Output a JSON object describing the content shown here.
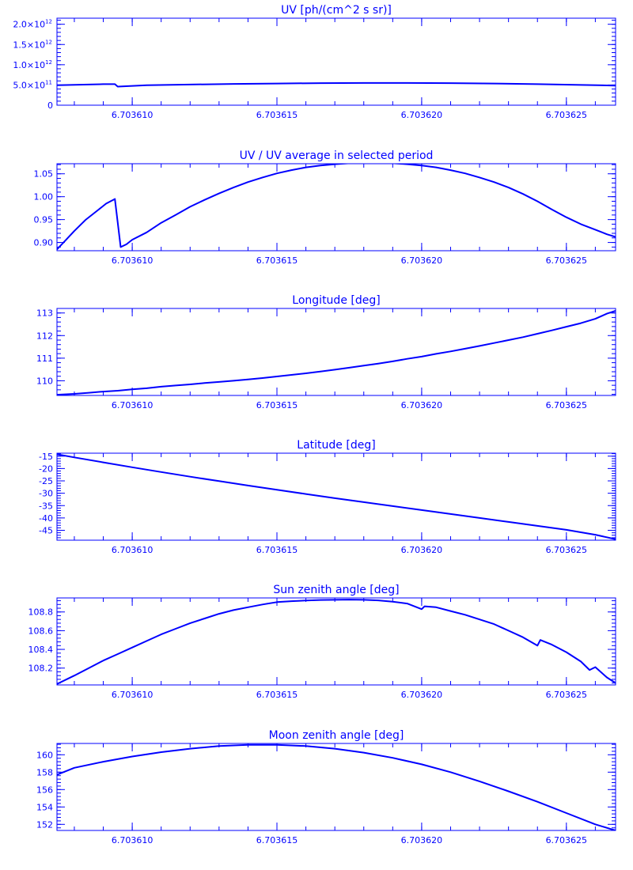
{
  "chart_data": [
    {
      "type": "line",
      "title": "UV [ph/(cm^2 s sr)]",
      "xlabel": "",
      "ylabel": "",
      "xlim": [
        6.7036074,
        6.7036267
      ],
      "ylim": [
        0,
        2150000000000.0
      ],
      "x_ticks": [
        "6.703610",
        "6.703615",
        "6.703620",
        "6.703625"
      ],
      "y_ticks": [
        {
          "value": 2000000000000.0,
          "label": "2.0×10",
          "exp": "12"
        },
        {
          "value": 1500000000000.0,
          "label": "1.5×10",
          "exp": "12"
        },
        {
          "value": 1000000000000.0,
          "label": "1.0×10",
          "exp": "12"
        },
        {
          "value": 500000000000.0,
          "label": "5.0×10",
          "exp": "11"
        },
        {
          "value": 0,
          "label": "0",
          "exp": ""
        }
      ],
      "series": [
        {
          "x": [
            6.7036074,
            6.703609,
            6.7036094,
            6.7036095,
            6.7036105,
            6.703612,
            6.7036135,
            6.703615,
            6.7036165,
            6.703618,
            6.7036195,
            6.703621,
            6.7036225,
            6.703624,
            6.7036255,
            6.7036267
          ],
          "y": [
            495000000000.0,
            520000000000.0,
            520000000000.0,
            460000000000.0,
            495000000000.0,
            510000000000.0,
            525000000000.0,
            535000000000.0,
            545000000000.0,
            550000000000.0,
            550000000000.0,
            545000000000.0,
            535000000000.0,
            520000000000.0,
            500000000000.0,
            485000000000.0
          ]
        }
      ]
    },
    {
      "type": "line",
      "title": "UV / UV average in selected period",
      "xlabel": "",
      "ylabel": "",
      "xlim": [
        6.7036074,
        6.7036267
      ],
      "ylim": [
        0.882,
        1.072
      ],
      "x_ticks": [
        "6.703610",
        "6.703615",
        "6.703620",
        "6.703625"
      ],
      "y_ticks": [
        {
          "value": 1.05,
          "label": "1.05"
        },
        {
          "value": 1.0,
          "label": "1.00"
        },
        {
          "value": 0.95,
          "label": "0.95"
        },
        {
          "value": 0.9,
          "label": "0.90"
        }
      ],
      "series": [
        {
          "x": [
            6.7036074,
            6.7036077,
            6.703608,
            6.7036084,
            6.7036088,
            6.7036091,
            6.7036094,
            6.7036096,
            6.7036098,
            6.70361,
            6.7036105,
            6.703611,
            6.7036115,
            6.703612,
            6.7036125,
            6.703613,
            6.7036135,
            6.703614,
            6.7036145,
            6.703615,
            6.7036155,
            6.703616,
            6.7036165,
            6.703617,
            6.7036175,
            6.703618,
            6.7036185,
            6.703619,
            6.7036195,
            6.70362,
            6.7036205,
            6.703621,
            6.7036215,
            6.703622,
            6.7036225,
            6.703623,
            6.7036235,
            6.703624,
            6.7036245,
            6.703625,
            6.7036255,
            6.703626,
            6.7036264,
            6.7036267
          ],
          "y": [
            0.885,
            0.905,
            0.925,
            0.95,
            0.97,
            0.985,
            0.995,
            0.89,
            0.896,
            0.906,
            0.922,
            0.943,
            0.96,
            0.978,
            0.993,
            1.007,
            1.02,
            1.032,
            1.042,
            1.051,
            1.058,
            1.064,
            1.068,
            1.071,
            1.073,
            1.074,
            1.074,
            1.073,
            1.071,
            1.068,
            1.064,
            1.058,
            1.051,
            1.042,
            1.032,
            1.02,
            1.006,
            0.99,
            0.972,
            0.955,
            0.94,
            0.928,
            0.918,
            0.912
          ]
        }
      ]
    },
    {
      "type": "line",
      "title": "Longitude [deg]",
      "xlabel": "",
      "ylabel": "",
      "xlim": [
        6.7036074,
        6.7036267
      ],
      "ylim": [
        109.35,
        113.2
      ],
      "x_ticks": [
        "6.703610",
        "6.703615",
        "6.703620",
        "6.703625"
      ],
      "y_ticks": [
        {
          "value": 113,
          "label": "113"
        },
        {
          "value": 112,
          "label": "112"
        },
        {
          "value": 111,
          "label": "111"
        },
        {
          "value": 110,
          "label": "110"
        }
      ],
      "series": [
        {
          "x": [
            6.7036074,
            6.703608,
            6.7036085,
            6.703609,
            6.7036095,
            6.70361,
            6.7036105,
            6.703611,
            6.7036115,
            6.703612,
            6.7036125,
            6.703613,
            6.7036135,
            6.703614,
            6.7036145,
            6.703615,
            6.7036155,
            6.703616,
            6.7036165,
            6.703617,
            6.7036175,
            6.703618,
            6.7036185,
            6.703619,
            6.7036195,
            6.70362,
            6.7036205,
            6.703621,
            6.7036215,
            6.703622,
            6.7036225,
            6.703623,
            6.7036235,
            6.703624,
            6.7036245,
            6.703625,
            6.7036255,
            6.703626,
            6.7036264,
            6.7036267
          ],
          "y": [
            109.38,
            109.42,
            109.47,
            109.52,
            109.56,
            109.62,
            109.67,
            109.74,
            109.79,
            109.84,
            109.9,
            109.95,
            110.0,
            110.06,
            110.12,
            110.19,
            110.26,
            110.33,
            110.41,
            110.49,
            110.58,
            110.67,
            110.76,
            110.86,
            110.97,
            111.07,
            111.19,
            111.3,
            111.42,
            111.54,
            111.67,
            111.8,
            111.93,
            112.08,
            112.23,
            112.39,
            112.55,
            112.74,
            112.97,
            113.1
          ]
        }
      ]
    },
    {
      "type": "line",
      "title": "Latitude [deg]",
      "xlabel": "",
      "ylabel": "",
      "xlim": [
        6.7036074,
        6.7036267
      ],
      "ylim": [
        -49.0,
        -13.8
      ],
      "x_ticks": [
        "6.703610",
        "6.703615",
        "6.703620",
        "6.703625"
      ],
      "y_ticks": [
        {
          "value": -15,
          "label": "-15"
        },
        {
          "value": -20,
          "label": "-20"
        },
        {
          "value": -25,
          "label": "-25"
        },
        {
          "value": -30,
          "label": "-30"
        },
        {
          "value": -35,
          "label": "-35"
        },
        {
          "value": -40,
          "label": "-40"
        },
        {
          "value": -45,
          "label": "-45"
        }
      ],
      "series": [
        {
          "x": [
            6.7036074,
            6.703608,
            6.703609,
            6.70361,
            6.703611,
            6.703612,
            6.703613,
            6.703614,
            6.703615,
            6.703616,
            6.703617,
            6.703618,
            6.703619,
            6.70362,
            6.703621,
            6.703622,
            6.703623,
            6.703624,
            6.703625,
            6.703626,
            6.7036267
          ],
          "y": [
            -14.2,
            -15.5,
            -17.5,
            -19.5,
            -21.4,
            -23.3,
            -25.1,
            -26.9,
            -28.6,
            -30.3,
            -32.0,
            -33.6,
            -35.2,
            -36.8,
            -38.4,
            -40.0,
            -41.6,
            -43.2,
            -44.8,
            -46.8,
            -48.6
          ]
        }
      ]
    },
    {
      "type": "line",
      "title": "Sun zenith angle [deg]",
      "xlabel": "",
      "ylabel": "",
      "xlim": [
        6.7036074,
        6.7036267
      ],
      "ylim": [
        108.02,
        108.95
      ],
      "x_ticks": [
        "6.703610",
        "6.703615",
        "6.703620",
        "6.703625"
      ],
      "y_ticks": [
        {
          "value": 108.8,
          "label": "108.8"
        },
        {
          "value": 108.6,
          "label": "108.6"
        },
        {
          "value": 108.4,
          "label": "108.4"
        },
        {
          "value": 108.2,
          "label": "108.2"
        }
      ],
      "series": [
        {
          "x": [
            6.7036074,
            6.703608,
            6.7036085,
            6.703609,
            6.7036095,
            6.70361,
            6.7036105,
            6.703611,
            6.7036115,
            6.703612,
            6.7036125,
            6.703613,
            6.7036135,
            6.703614,
            6.7036145,
            6.703615,
            6.7036155,
            6.703616,
            6.7036165,
            6.703617,
            6.7036175,
            6.703618,
            6.7036185,
            6.703619,
            6.7036195,
            6.70362,
            6.7036201,
            6.7036205,
            6.703621,
            6.7036215,
            6.703622,
            6.7036225,
            6.703623,
            6.7036235,
            6.703624,
            6.7036241,
            6.7036245,
            6.703625,
            6.7036255,
            6.7036258,
            6.703626,
            6.7036264,
            6.7036267
          ],
          "y": [
            108.03,
            108.12,
            108.2,
            108.28,
            108.35,
            108.42,
            108.49,
            108.56,
            108.62,
            108.68,
            108.73,
            108.78,
            108.82,
            108.85,
            108.88,
            108.905,
            108.915,
            108.922,
            108.928,
            108.93,
            108.932,
            108.93,
            108.924,
            108.91,
            108.89,
            108.83,
            108.86,
            108.85,
            108.81,
            108.77,
            108.72,
            108.67,
            108.6,
            108.53,
            108.44,
            108.5,
            108.45,
            108.37,
            108.27,
            108.18,
            108.21,
            108.1,
            108.04
          ]
        }
      ]
    },
    {
      "type": "line",
      "title": "Moon zenith angle [deg]",
      "xlabel": "",
      "ylabel": "",
      "xlim": [
        6.7036074,
        6.7036267
      ],
      "ylim": [
        151.3,
        161.3
      ],
      "x_ticks": [
        "6.703610",
        "6.703615",
        "6.703620",
        "6.703625"
      ],
      "y_ticks": [
        {
          "value": 160,
          "label": "160"
        },
        {
          "value": 158,
          "label": "158"
        },
        {
          "value": 156,
          "label": "156"
        },
        {
          "value": 154,
          "label": "154"
        },
        {
          "value": 152,
          "label": "152"
        }
      ],
      "series": [
        {
          "x": [
            6.7036074,
            6.703608,
            6.703609,
            6.70361,
            6.703611,
            6.703612,
            6.703613,
            6.703614,
            6.703615,
            6.703616,
            6.703617,
            6.703618,
            6.703619,
            6.70362,
            6.703621,
            6.703622,
            6.703623,
            6.703624,
            6.703625,
            6.703626,
            6.7036267
          ],
          "y": [
            157.7,
            158.5,
            159.2,
            159.8,
            160.3,
            160.7,
            161.0,
            161.15,
            161.15,
            161.0,
            160.7,
            160.25,
            159.65,
            158.9,
            158.0,
            156.95,
            155.8,
            154.6,
            153.3,
            152.0,
            151.3
          ]
        }
      ]
    }
  ]
}
